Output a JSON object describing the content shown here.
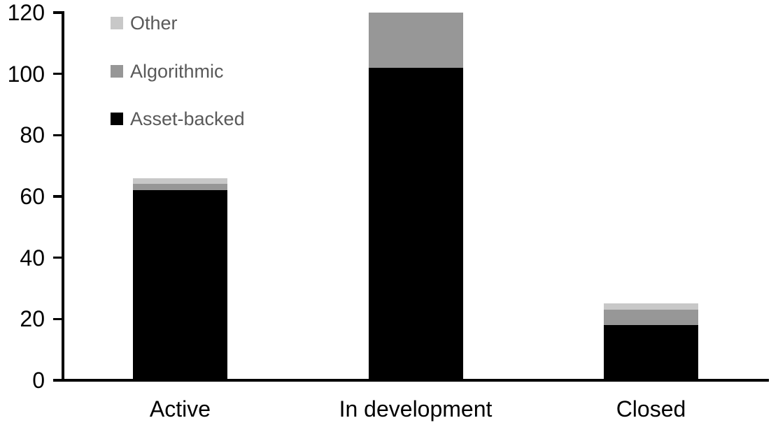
{
  "chart_data": {
    "type": "bar",
    "stacked": true,
    "title": "",
    "xlabel": "",
    "ylabel": "",
    "categories": [
      "Active",
      "In development",
      "Closed"
    ],
    "series": [
      {
        "name": "Asset-backed",
        "color": "#000000",
        "values": [
          62,
          102,
          18
        ]
      },
      {
        "name": "Algorithmic",
        "color": "#979797",
        "values": [
          2,
          18,
          5
        ]
      },
      {
        "name": "Other",
        "color": "#c8c8c8",
        "values": [
          2,
          0,
          2
        ]
      }
    ],
    "totals_by_category": [
      66,
      120,
      25
    ],
    "ylim": [
      0,
      120
    ],
    "yticks": [
      0,
      20,
      40,
      60,
      80,
      100,
      120
    ],
    "grid": false,
    "legend_position": "top-left-inside",
    "legend_items": [
      {
        "label": "Other",
        "color": "#c8c8c8"
      },
      {
        "label": "Algorithmic",
        "color": "#979797"
      },
      {
        "label": "Asset-backed",
        "color": "#000000"
      }
    ],
    "axis_color": "#000000",
    "legend_text_color": "#595959",
    "background_color": "#ffffff"
  }
}
